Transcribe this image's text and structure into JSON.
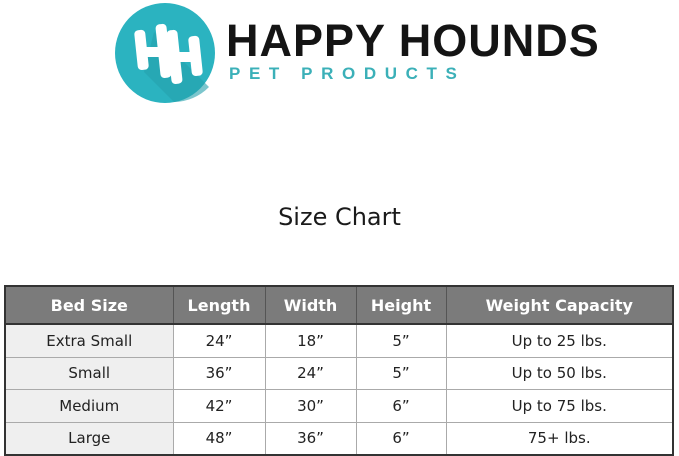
{
  "logo": {
    "brand": "HAPPY HOUNDS",
    "tagline": "PET PRODUCTS",
    "mark": "HH",
    "colors": {
      "teal": "#2bb3c0",
      "text": "#141414"
    }
  },
  "title": "Size Chart",
  "table": {
    "headers": [
      "Bed Size",
      "Length",
      "Width",
      "Height",
      "Weight Capacity"
    ],
    "rows": [
      [
        "Extra Small",
        "24”",
        "18”",
        "5”",
        "Up to 25 lbs."
      ],
      [
        "Small",
        "36”",
        "24”",
        "5”",
        "Up to 50 lbs."
      ],
      [
        "Medium",
        "42”",
        "30”",
        "6”",
        "Up to 75 lbs."
      ],
      [
        "Large",
        "48”",
        "36”",
        "6”",
        "75+ lbs."
      ]
    ]
  }
}
